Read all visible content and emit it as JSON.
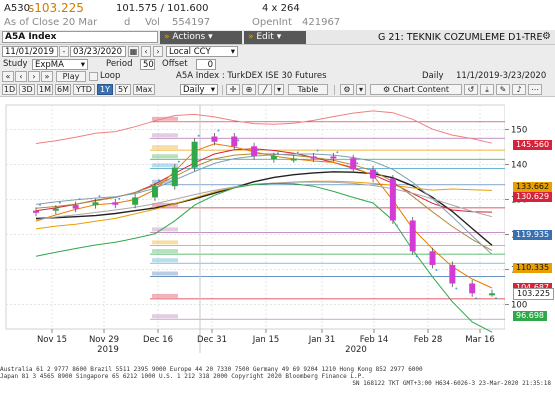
{
  "quote": {
    "ticker": "A530",
    "last": "s103.225",
    "range": "101.575 / 101.600",
    "size": "4 x 264",
    "close_label": "As of Close 20 Mar",
    "d_label": "d",
    "vol_label": "Vol",
    "vol": "554197",
    "openint_label": "OpenInt",
    "openint": "421967"
  },
  "title_bar": {
    "security": "A5A Index",
    "actions": "Actions",
    "edit": "Edit",
    "description": "G 21: TEKNIK COZUMLEME D1-TRE"
  },
  "controls": {
    "start_date": "11/01/2019",
    "end_date": "03/23/2020",
    "currency": "Local CCY"
  },
  "study": {
    "label": "Study",
    "name": "ExpMA",
    "period_label": "Period",
    "period": "50",
    "offset_label": "Offset",
    "offset": "0"
  },
  "playbar": {
    "play": "Play",
    "loop": "Loop",
    "security_name": "A5A Index : TurkDEX ISE 30 Futures",
    "frequency": "Daily",
    "date_range": "11/1/2019-3/23/2020"
  },
  "periods": [
    "1D",
    "3D",
    "1M",
    "6M",
    "YTD",
    "1Y",
    "5Y",
    "Max"
  ],
  "active_period": "1Y",
  "toolbar": {
    "frequency": "Daily",
    "table": "Table",
    "chart_content": "Chart Content"
  },
  "chart_data": {
    "type": "line",
    "y_axis_ticks": [
      150,
      140,
      130,
      120,
      110,
      100
    ],
    "ylim": [
      93,
      157
    ],
    "x_axis_labels": [
      "Nov 15",
      "Nov 29",
      "Dec 16",
      "Dec 31",
      "Jan 15",
      "Jan 31",
      "Feb 14",
      "Feb 28",
      "Mar 16"
    ],
    "year_labels": [
      "2019",
      "2020"
    ],
    "price_labels": [
      {
        "value": "145.560",
        "y": 145.56,
        "color": "#d8223a"
      },
      {
        "value": "133.662",
        "y": 133.66,
        "color": "#e8a000"
      },
      {
        "value": "130.629",
        "y": 130.63,
        "color": "#d8223a"
      },
      {
        "value": "119.935",
        "y": 119.94,
        "color": "#3a6fb0"
      },
      {
        "value": "110.335",
        "y": 110.34,
        "color": "#e8a000"
      },
      {
        "value": "104.687",
        "y": 104.69,
        "color": "#d8223a"
      },
      {
        "value": "103.225",
        "y": 103.23,
        "color": "#ffffff"
      },
      {
        "value": "96.698",
        "y": 96.7,
        "color": "#2fa84a"
      }
    ],
    "fib_levels": [
      {
        "y": 152.2,
        "color": "#d8223a"
      },
      {
        "y": 147.5,
        "color": "#b06fb0"
      },
      {
        "y": 144.1,
        "color": "#e8a000"
      },
      {
        "y": 141.5,
        "color": "#2fa84a"
      },
      {
        "y": 138.9,
        "color": "#3aa0c8"
      },
      {
        "y": 134.2,
        "color": "#3a6fb0"
      },
      {
        "y": 127.6,
        "color": "#d8223a"
      },
      {
        "y": 120.6,
        "color": "#b06fb0"
      },
      {
        "y": 116.9,
        "color": "#e8a000"
      },
      {
        "y": 114.4,
        "color": "#2fa84a"
      },
      {
        "y": 111.8,
        "color": "#3aa0c8"
      },
      {
        "y": 108.0,
        "color": "#3a6fb0"
      },
      {
        "y": 101.6,
        "color": "#d8223a"
      },
      {
        "y": 95.8,
        "color": "#b06fb0"
      }
    ],
    "series": [
      {
        "color": "#222222",
        "values": [
          124.6,
          124.8,
          125.1,
          125.4,
          126.0,
          126.8,
          127.6,
          128.8,
          130.2,
          131.8,
          133.4,
          135.1,
          136.3,
          137.1,
          137.6,
          137.9,
          137.8,
          137.4,
          136.2,
          133.9,
          130.6,
          126.6,
          121.7,
          116.9
        ]
      },
      {
        "color": "#e8a000",
        "values": [
          121.6,
          122.4,
          122.9,
          123.8,
          124.6,
          125.9,
          127.2,
          128.8,
          130.5,
          132.2,
          133.5,
          134.3,
          134.7,
          135.0,
          135.2,
          135.2,
          135.0,
          134.6,
          134.1,
          133.3,
          132.7,
          133.0,
          132.8,
          132.6
        ]
      },
      {
        "color": "#d8223a",
        "values": [
          126.8,
          127.6,
          128.6,
          129.8,
          130.6,
          132.0,
          134.4,
          137.5,
          140.5,
          143.0,
          144.2,
          144.5,
          144.0,
          143.2,
          142.0,
          140.6,
          138.9,
          137.1,
          134.6,
          131.7,
          128.9,
          127.0,
          126.5,
          126.4
        ]
      },
      {
        "color": "#e87a00",
        "values": [
          123.8,
          125.6,
          127.2,
          128.5,
          128.9,
          130.0,
          132.8,
          138.1,
          143.8,
          145.9,
          145.0,
          143.6,
          142.4,
          141.6,
          141.0,
          140.6,
          139.2,
          136.9,
          129.8,
          121.7,
          115.9,
          110.8,
          107.3,
          104.7
        ]
      },
      {
        "color": "#b08a3a",
        "values": [
          127.5,
          128.0,
          128.7,
          129.6,
          130.6,
          132.0,
          134.0,
          136.6,
          139.4,
          141.6,
          142.7,
          143.1,
          143.0,
          142.6,
          142.0,
          141.2,
          139.9,
          138.2,
          135.1,
          130.9,
          126.5,
          122.3,
          118.6,
          115.4
        ]
      },
      {
        "color": "#7fa0b0",
        "values": [
          128.6,
          129.3,
          129.9,
          130.4,
          130.8,
          131.7,
          133.2,
          135.6,
          138.0,
          140.3,
          141.7,
          142.4,
          142.8,
          143.0,
          143.0,
          142.7,
          142.0,
          140.9,
          138.6,
          134.9,
          130.2,
          125.1,
          119.6,
          114.3
        ]
      },
      {
        "color": "#a8a8a8",
        "values": [
          124.2,
          125.0,
          125.6,
          126.3,
          127.0,
          127.8,
          128.8,
          130.1,
          131.4,
          132.6,
          133.6,
          134.3,
          134.7,
          134.9,
          135.0,
          134.9,
          134.6,
          134.0,
          133.1,
          131.8,
          130.2,
          128.4,
          126.6,
          125.1
        ]
      },
      {
        "color": "#f08080",
        "values": [
          146.0,
          146.8,
          147.8,
          148.9,
          149.4,
          150.8,
          152.5,
          154.0,
          154.3,
          153.6,
          152.5,
          151.7,
          151.5,
          151.8,
          152.6,
          153.7,
          154.7,
          155.3,
          154.8,
          152.9,
          150.1,
          148.4,
          147.4,
          146.1
        ]
      },
      {
        "color": "#2fa84a",
        "values": [
          113.8,
          114.9,
          116.0,
          117.0,
          117.8,
          118.9,
          120.2,
          123.9,
          128.4,
          131.2,
          133.3,
          134.3,
          134.6,
          134.5,
          133.8,
          132.3,
          130.6,
          129.0,
          124.1,
          115.6,
          107.9,
          100.8,
          95.0,
          92.1
        ]
      }
    ],
    "close": [
      126.8,
      127.4,
      128.4,
      129.2,
      128.5,
      130.6,
      133.8,
      139.1,
      146.5,
      148.0,
      145.2,
      142.4,
      141.5,
      141.7,
      142.3,
      141.8,
      138.6,
      136.0,
      124.0,
      115.2,
      111.3,
      106.0,
      103.2,
      103.2
    ],
    "candle_colors": [
      "#d63ad6",
      "#2fa84a",
      "#d63ad6",
      "#2fa84a",
      "#d63ad6",
      "#2fa84a",
      "#2fa84a",
      "#2fa84a",
      "#2fa84a",
      "#d63ad6",
      "#d63ad6",
      "#d63ad6",
      "#2fa84a",
      "#2fa84a",
      "#d63ad6",
      "#d63ad6",
      "#d63ad6",
      "#d63ad6",
      "#d63ad6",
      "#d63ad6",
      "#d63ad6",
      "#d63ad6",
      "#d63ad6",
      "#2fa84a"
    ]
  },
  "footer": {
    "line1": "Australia 61 2 9777 8600 Brazil 5511 2395 9000 Europe 44 20 7330 7500 Germany 49 69 9204 1210 Hong Kong 852 2977 6000",
    "line2": "Japan 81 3 4565 8900       Singapore 65 6212 1000       U.S. 1 212 318 2000       Copyright 2020 Bloomberg Finance L.P.",
    "line3": "SN 168122 TKT GMT+3:00 H634-6026-3 23-Mar-2020 21:35:18"
  }
}
